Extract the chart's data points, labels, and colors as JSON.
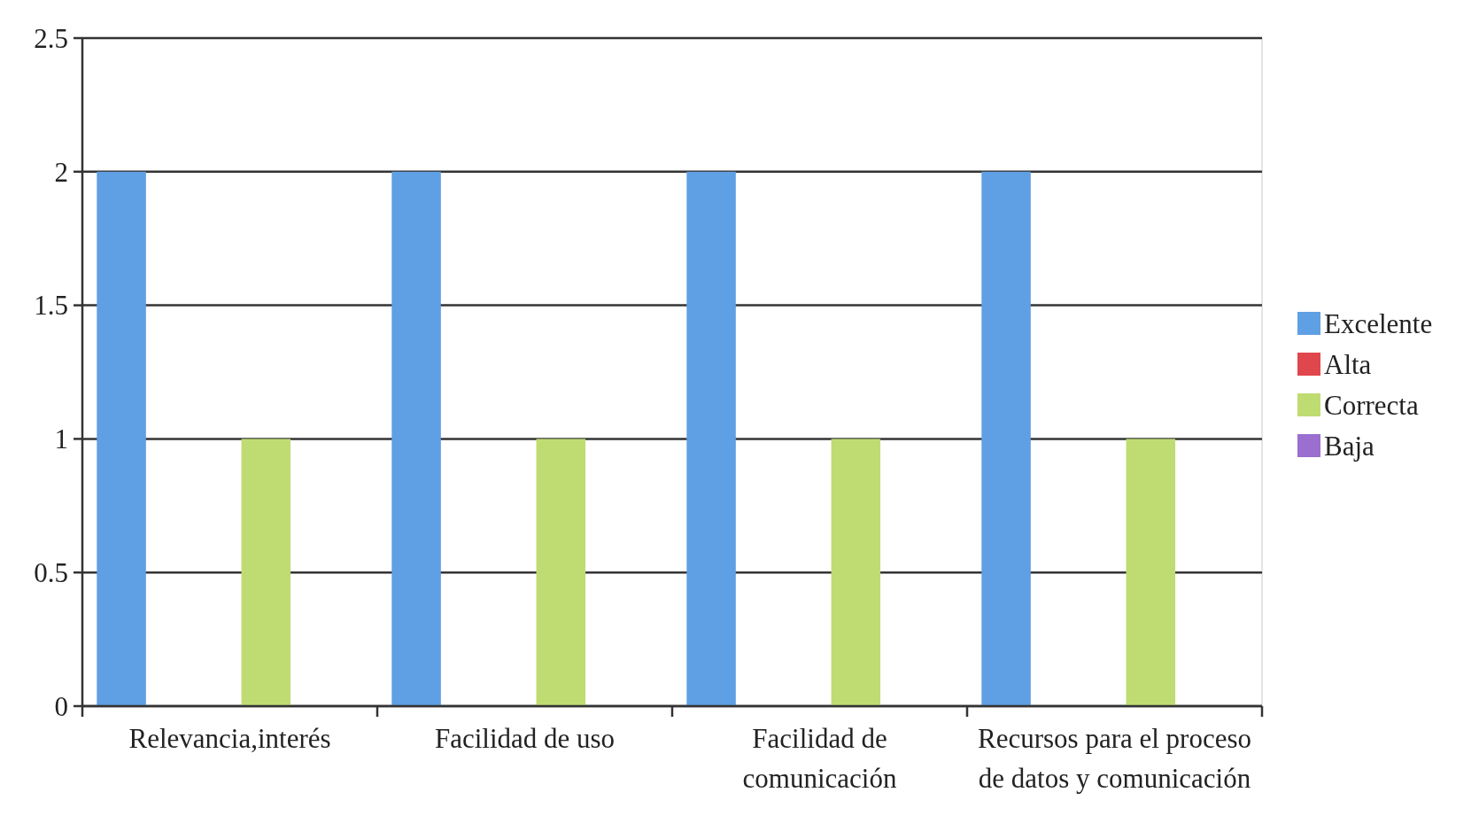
{
  "chart_data": {
    "type": "bar",
    "categories": [
      "Relevancia,interés",
      "Facilidad de uso",
      "Facilidad de comunicación",
      "Recursos para el proceso de datos y comunicación"
    ],
    "series": [
      {
        "name": "Excelente",
        "color": "#5f9fe3",
        "values": [
          2,
          2,
          2,
          2
        ]
      },
      {
        "name": "Alta",
        "color": "#e0474c",
        "values": [
          0,
          0,
          0,
          0
        ]
      },
      {
        "name": "Correcta",
        "color": "#bfdc72",
        "values": [
          1,
          1,
          1,
          1
        ]
      },
      {
        "name": "Baja",
        "color": "#9a6fcf",
        "values": [
          0,
          0,
          0,
          0
        ]
      }
    ],
    "ylim": [
      0,
      2.5
    ],
    "yticks": [
      0,
      0.5,
      1,
      1.5,
      2,
      2.5
    ],
    "grid": "y",
    "legend": "right"
  }
}
